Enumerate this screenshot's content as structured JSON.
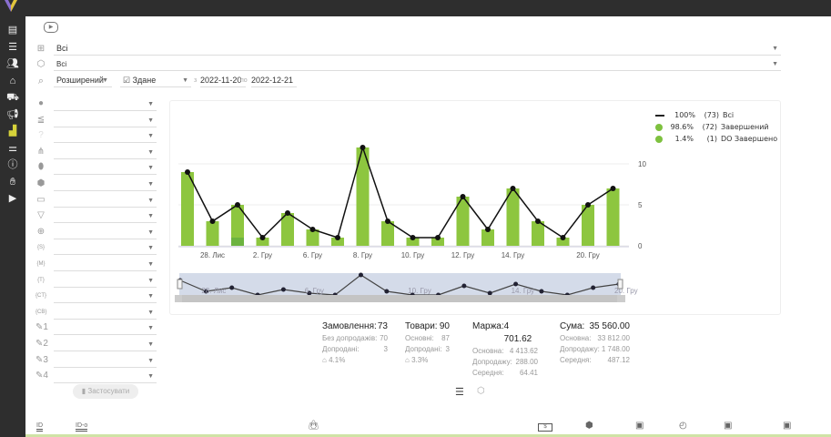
{
  "filters": {
    "tree_value": "Всі",
    "product_value": "Всі",
    "search_mode": "Розширений",
    "status": "Здане",
    "from_label": "з",
    "date_from": "2022-11-20",
    "to_label": "по",
    "date_to": "2022-12-21"
  },
  "sidebar_icons": [
    "dashboard-icon",
    "list-icon",
    "users-icon",
    "warehouse-icon",
    "cart-icon",
    "megaphone-icon",
    "analytics-icon",
    "sliders-icon",
    "info-icon",
    "handshake-icon",
    "video-icon"
  ],
  "left_filters": [
    "globe-icon",
    "lines-icon",
    "help-icon",
    "hierarchy-icon",
    "tag-icon",
    "box-icon",
    "money-icon",
    "funnel-icon",
    "web-icon",
    "s-bracket-icon",
    "m-bracket-icon",
    "t-bracket-icon",
    "ct-bracket-icon",
    "cb-bracket-icon",
    "pen-1-icon",
    "pen-2-icon",
    "pen-3-icon",
    "pen-4-icon"
  ],
  "left_filter_sub": [
    "",
    "",
    "",
    "",
    "",
    "",
    "",
    "",
    "",
    "S",
    "M",
    "T",
    "CT",
    "CB",
    "1",
    "2",
    "3",
    "4"
  ],
  "apply_label": "Застосувати",
  "legend": [
    {
      "pct": "100%",
      "count": "(73)",
      "label": "Всі",
      "kind": "line"
    },
    {
      "pct": "98.6%",
      "count": "(72)",
      "label": "Завершений",
      "kind": "dot"
    },
    {
      "pct": "1.4%",
      "count": "(1)",
      "label": "DO Завершено",
      "kind": "dot"
    }
  ],
  "chart_data": {
    "type": "bar+line",
    "y_ticks": [
      0,
      5,
      10
    ],
    "ylim": [
      0,
      15
    ],
    "axis_side": "right",
    "grid": true,
    "x_tick_labels": [
      "",
      "28. Лис",
      "",
      "2. Гру",
      "",
      "6. Гру",
      "",
      "8. Гру",
      "",
      "10. Гру",
      "",
      "12. Гру",
      "",
      "14. Гру",
      "",
      "",
      "20. Гру",
      ""
    ],
    "series": [
      {
        "name": "Всі",
        "type": "line",
        "color": "#111111",
        "values": [
          9,
          3,
          5,
          1,
          4,
          2,
          1,
          12,
          3,
          1,
          1,
          6,
          2,
          7,
          3,
          1,
          5,
          7
        ]
      },
      {
        "name": "Завершений",
        "type": "bar",
        "color": "#8dc63f",
        "values": [
          9,
          3,
          4,
          1,
          4,
          2,
          1,
          12,
          3,
          1,
          1,
          6,
          2,
          7,
          3,
          1,
          5,
          7
        ]
      },
      {
        "name": "DO Завершено",
        "type": "bar",
        "color": "#6cb33f",
        "values": [
          0,
          0,
          1,
          0,
          0,
          0,
          0,
          0,
          0,
          0,
          0,
          0,
          0,
          0,
          0,
          0,
          0,
          0
        ]
      }
    ],
    "navigator_labels": [
      "28. Лис",
      "6. Гру",
      "10. Гру",
      "14. Гру",
      "20. Гру"
    ]
  },
  "stats": [
    {
      "title": "Замовлення:",
      "value": "73",
      "rows": [
        [
          "Без допродажів:",
          "70"
        ],
        [
          "Допродані:",
          "3"
        ],
        [
          "",
          "4.1%"
        ]
      ]
    },
    {
      "title": "Товари:",
      "value": "90",
      "rows": [
        [
          "Основні:",
          "87"
        ],
        [
          "Допродані:",
          "3"
        ],
        [
          "",
          "3.3%"
        ]
      ]
    },
    {
      "title": "Маржа:",
      "value": "4 701.62",
      "rows": [
        [
          "Основна:",
          "4 413.62"
        ],
        [
          "Допродажу:",
          "288.00"
        ],
        [
          "Середня:",
          "64.41"
        ]
      ]
    },
    {
      "title": "Сума:",
      "value": "35 560.00",
      "rows": [
        [
          "Основна:",
          "33 812.00"
        ],
        [
          "Допродажу:",
          "1 748.00"
        ],
        [
          "Середня:",
          "487.12"
        ]
      ]
    }
  ],
  "bottom": {
    "id_label": "ID",
    "id_o_label": "ID-o"
  },
  "colors": {
    "bar": "#8dc63f",
    "dark_bar": "#6cb33f",
    "sidebar": "#2e2e2e",
    "active_icon": "#d6d23a"
  }
}
